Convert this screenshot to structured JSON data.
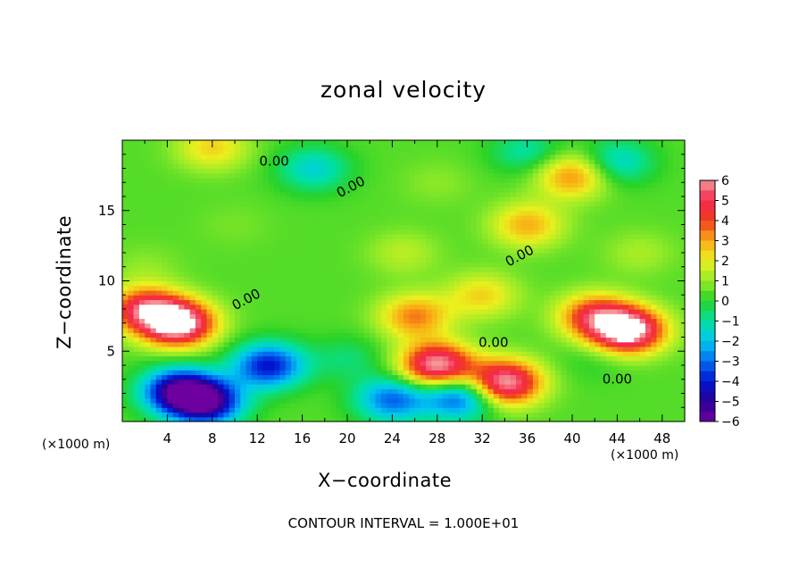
{
  "chart_data": {
    "type": "heatmap",
    "title": "zonal velocity",
    "xlabel": "X−coordinate",
    "ylabel": "Z−coordinate",
    "x_unit": "(×1000 m)",
    "y_unit": "",
    "footnote": "CONTOUR INTERVAL = 1.000E+01",
    "xlim": [
      0,
      50
    ],
    "ylim": [
      0,
      20
    ],
    "x_ticks": [
      4,
      8,
      12,
      16,
      20,
      24,
      28,
      32,
      36,
      40,
      44,
      48
    ],
    "y_ticks": [
      5,
      10,
      15
    ],
    "colorbar": {
      "ticks": [
        "6",
        "5",
        "4",
        "3",
        "2",
        "1",
        "0",
        "−1",
        "−2",
        "−3",
        "−4",
        "−5",
        "−6"
      ],
      "range": [
        -6,
        6
      ]
    },
    "contour_labels": [
      {
        "text": "0.00",
        "x": 13.5,
        "z": 18.2
      },
      {
        "text": "0.00",
        "x": 20.5,
        "z": 16.4
      },
      {
        "text": "0.00",
        "x": 35.5,
        "z": 11.5
      },
      {
        "text": "0.00",
        "x": 11.2,
        "z": 8.4
      },
      {
        "text": "0.00",
        "x": 33.0,
        "z": 5.3
      },
      {
        "text": "0.00",
        "x": 44.0,
        "z": 2.7
      }
    ],
    "fields": [
      {
        "x": 2,
        "z": 8.0,
        "value": 4.5
      },
      {
        "x": 5,
        "z": 7.0,
        "value": 6.5
      },
      {
        "x": 45,
        "z": 6.5,
        "value": 6.5
      },
      {
        "x": 42,
        "z": 7.5,
        "value": 4.0
      },
      {
        "x": 28,
        "z": 4.0,
        "value": 6.0
      },
      {
        "x": 34,
        "z": 2.8,
        "value": 6.0
      },
      {
        "x": 13,
        "z": 4.0,
        "value": -4.5
      },
      {
        "x": 30,
        "z": 1.8,
        "value": -4.0
      },
      {
        "x": 5,
        "z": 2.2,
        "value": -5.5
      },
      {
        "x": 7.5,
        "z": 1.4,
        "value": -5.5
      },
      {
        "x": 24,
        "z": 1.6,
        "value": -3.5
      },
      {
        "x": 17,
        "z": 18.0,
        "value": -2.0
      },
      {
        "x": 44,
        "z": 18.5,
        "value": -2.0
      },
      {
        "x": 36,
        "z": 19.2,
        "value": -1.5
      },
      {
        "x": 8,
        "z": 19.5,
        "value": 2.0
      },
      {
        "x": 40,
        "z": 17.5,
        "value": 3.0
      },
      {
        "x": 36,
        "z": 14.0,
        "value": 2.5
      },
      {
        "x": 26,
        "z": 7.5,
        "value": 3.0
      },
      {
        "x": 32,
        "z": 9.0,
        "value": 2.0
      },
      {
        "x": 25,
        "z": 12.0,
        "value": 1.0
      },
      {
        "x": 10,
        "z": 14.0,
        "value": 0.3
      },
      {
        "x": 46,
        "z": 12.0,
        "value": 0.8
      },
      {
        "x": 20,
        "z": 4.5,
        "value": -1.0
      },
      {
        "x": 42,
        "z": 4.5,
        "value": -0.5
      },
      {
        "x": 2,
        "z": 11.0,
        "value": 0.5
      },
      {
        "x": 28,
        "z": 17.0,
        "value": 0.5
      }
    ]
  }
}
